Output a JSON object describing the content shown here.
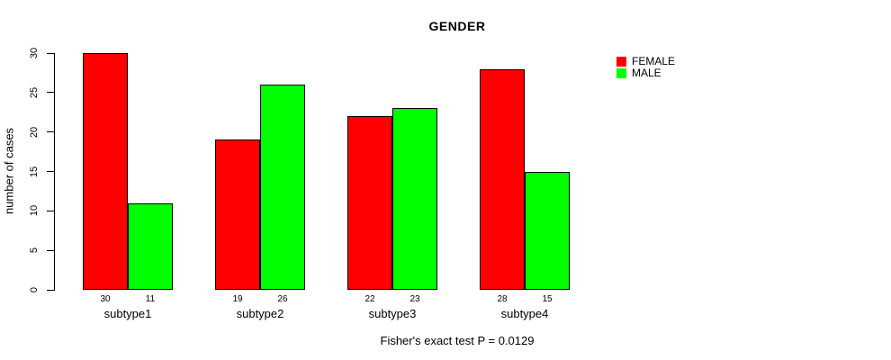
{
  "chart_data": {
    "type": "bar",
    "title": "GENDER",
    "ylabel": "number of cases",
    "xlabel": "",
    "categories": [
      "subtype1",
      "subtype2",
      "subtype3",
      "subtype4"
    ],
    "series": [
      {
        "name": "FEMALE",
        "color": "#ff0000",
        "values": [
          30,
          19,
          22,
          28
        ]
      },
      {
        "name": "MALE",
        "color": "#00ff00",
        "values": [
          11,
          26,
          23,
          15
        ]
      }
    ],
    "yticks": [
      0,
      5,
      10,
      15,
      20,
      25,
      30
    ],
    "ylim": [
      0,
      30
    ],
    "grid": false,
    "legend_position": "top-right",
    "bar_value_labels_shown": true,
    "bar_border_color": "#000000",
    "annotation": "Fisher's exact test P = 0.0129"
  }
}
